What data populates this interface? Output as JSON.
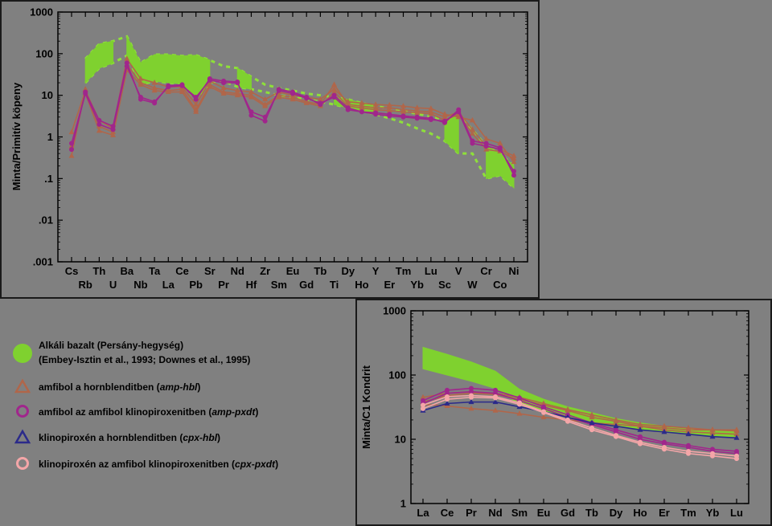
{
  "colors": {
    "background": "#808080",
    "basalt_band": "#7fd12f",
    "basalt_dash": "#8ee03a",
    "amp_hbl": "#b0664a",
    "amp_pxdt": "#a0268c",
    "cpx_hbl": "#2b2a8a",
    "cpx_pxdt": "#f4a6a8"
  },
  "legend": {
    "basalt_line1": "Alkáli bazalt (Persány-hegység)",
    "basalt_line2": "(Embey-Isztin et al., 1993; Downes et al., 1995)",
    "amp_hbl_text": "amfibol a hornblenditben",
    "amp_hbl_code": "amp-hbl",
    "amp_pxdt_text": "amfibol az amfibol klinopiroxenitben",
    "amp_pxdt_code": "amp-pxdt",
    "cpx_hbl_text": "klinopiroxén a hornblenditben",
    "cpx_hbl_code": "cpx-hbl",
    "cpx_pxdt_text": "klinopiroxén az amfibol klinopiroxenitben",
    "cpx_pxdt_code": "cpx-pxdt"
  },
  "chart_data": [
    {
      "type": "line",
      "ylabel": "Minta/Primitív köpeny",
      "yscale": "log",
      "ylim": [
        0.001,
        1000
      ],
      "yticks": [
        "1000",
        "100",
        "10",
        "1",
        ".1",
        ".01",
        ".001"
      ],
      "grid": false,
      "categories": [
        "Cs",
        "Rb",
        "Th",
        "U",
        "Ba",
        "Nb",
        "Ta",
        "La",
        "Ce",
        "Pb",
        "Sr",
        "Pr",
        "Nd",
        "Hf",
        "Zr",
        "Sm",
        "Eu",
        "Gd",
        "Tb",
        "Ti",
        "Dy",
        "Ho",
        "Y",
        "Er",
        "Tm",
        "Yb",
        "Lu",
        "Sc",
        "V",
        "W",
        "Cr",
        "Co",
        "Ni"
      ],
      "basalt_band": {
        "x": [
          "Cs",
          "Rb",
          "Th",
          "U",
          "Ba",
          "Nb",
          "Ta",
          "La",
          "Ce",
          "Pb",
          "Sr",
          "Pr",
          "Nd",
          "Hf",
          "Zr",
          "Sm",
          "Eu",
          "Gd",
          "Tb",
          "Ti",
          "Dy",
          "Ho",
          "Y",
          "Er",
          "Tm",
          "Yb",
          "Lu",
          "Sc",
          "V",
          "W",
          "Cr",
          "Co",
          "Ni"
        ],
        "upper": [
          null,
          75,
          170,
          200,
          260,
          60,
          95,
          95,
          88,
          92,
          70,
          50,
          45,
          28,
          18,
          15,
          13,
          11,
          10,
          9,
          8,
          6.5,
          5.5,
          4.8,
          4.2,
          3.6,
          3.1,
          2.6,
          3.5,
          1.5,
          0.6,
          0.4,
          0.2
        ],
        "lower": [
          null,
          20,
          45,
          60,
          90,
          18,
          22,
          20,
          19,
          8,
          20,
          22,
          16,
          14,
          12,
          10,
          9,
          8,
          7,
          6,
          5,
          4.2,
          3.5,
          2.8,
          2.2,
          1.6,
          1.2,
          0.8,
          0.4,
          0.4,
          0.1,
          0.12,
          0.06
        ],
        "solid_segments": [
          [
            "Rb",
            "U"
          ],
          [
            "Ba",
            "Sr"
          ],
          [
            "Nd",
            "Hf"
          ],
          [
            "Ti",
            "Y"
          ],
          [
            "Sc",
            "V"
          ],
          [
            "Cr",
            "Ni"
          ]
        ]
      },
      "series": [
        {
          "group": "amp-hbl",
          "values": [
            0.35,
            14,
            1.8,
            1.3,
            55,
            20,
            15,
            13,
            14,
            4.5,
            18,
            12,
            11,
            10,
            6,
            10,
            9,
            7,
            6,
            18,
            6,
            5.5,
            5,
            5,
            4.5,
            4.2,
            4,
            3,
            4,
            1.5,
            0.6,
            0.5,
            0.35
          ]
        },
        {
          "group": "amp-hbl",
          "values": [
            1.3,
            13,
            2.5,
            1.6,
            75,
            25,
            20,
            16,
            16,
            6,
            22,
            15,
            13,
            12,
            8,
            12,
            10,
            9,
            8,
            14,
            7,
            6.5,
            6,
            5.8,
            5.5,
            5,
            4.8,
            3.5,
            3,
            2.5,
            0.9,
            0.7,
            0.25
          ]
        },
        {
          "group": "amp-hbl",
          "values": [
            0.6,
            11,
            1.4,
            1.1,
            40,
            18,
            13,
            12,
            12,
            4,
            16,
            11,
            10,
            9,
            5.5,
            9,
            8,
            6.5,
            5.5,
            12,
            5.5,
            5,
            4.5,
            4.3,
            4,
            3.8,
            3.6,
            2.5,
            3.5,
            1.2,
            0.5,
            0.45,
            0.3
          ]
        },
        {
          "group": "amp-pxdt",
          "values": [
            0.5,
            12,
            2.5,
            1.8,
            60,
            8,
            6.5,
            17,
            18,
            8,
            25,
            22,
            21,
            3.3,
            2.4,
            14,
            12,
            9,
            6,
            10,
            5,
            4,
            3.8,
            3.5,
            3.2,
            3,
            2.8,
            2.2,
            4.5,
            0.8,
            0.7,
            0.55,
            0.12
          ]
        },
        {
          "group": "amp-pxdt",
          "values": [
            0.7,
            11,
            2,
            1.5,
            50,
            9,
            7,
            16,
            17,
            9,
            23,
            20,
            20,
            4,
            3,
            13,
            11,
            8.5,
            6.5,
            9,
            4.5,
            4,
            3.5,
            3.2,
            3,
            2.8,
            2.6,
            2.4,
            4,
            0.7,
            0.6,
            0.5,
            0.15
          ]
        }
      ]
    },
    {
      "type": "line",
      "ylabel": "Minta/C1 Kondrit",
      "yscale": "log",
      "ylim": [
        1,
        1000
      ],
      "yticks": [
        "1000",
        "100",
        "10",
        "1"
      ],
      "grid": false,
      "categories": [
        "La",
        "Ce",
        "Pr",
        "Nd",
        "Sm",
        "Eu",
        "Gd",
        "Tb",
        "Dy",
        "Ho",
        "Er",
        "Tm",
        "Yb",
        "Lu"
      ],
      "basalt_band": {
        "upper": [
          270,
          210,
          160,
          115,
          60,
          42,
          32,
          26,
          21,
          18,
          16,
          15,
          14,
          13
        ],
        "lower": [
          125,
          100,
          80,
          62,
          35,
          28,
          22,
          19,
          16,
          14,
          13,
          12,
          11,
          11
        ]
      },
      "series": [
        {
          "group": "amp-hbl",
          "values": [
            35,
            33,
            30,
            28,
            25,
            22,
            20,
            18,
            17,
            16,
            15,
            14,
            14,
            14
          ]
        },
        {
          "group": "amp-hbl",
          "values": [
            45,
            52,
            55,
            52,
            45,
            36,
            29,
            24,
            20,
            17,
            16,
            15,
            14,
            13.5
          ]
        },
        {
          "group": "amp-hbl",
          "values": [
            38,
            48,
            52,
            50,
            42,
            34,
            28,
            22,
            19,
            16,
            14,
            13,
            12.5,
            12
          ]
        },
        {
          "group": "amp-pxdt",
          "values": [
            40,
            58,
            62,
            58,
            44,
            32,
            24,
            18,
            14,
            11,
            9,
            8,
            7,
            6.5
          ]
        },
        {
          "group": "amp-pxdt",
          "values": [
            36,
            52,
            55,
            52,
            40,
            30,
            22,
            17,
            13,
            10,
            8.5,
            7.5,
            6.5,
            6
          ]
        },
        {
          "group": "cpx-hbl",
          "values": [
            28,
            36,
            38,
            38,
            32,
            27,
            22,
            18,
            16,
            14,
            13,
            12,
            11,
            10.5
          ]
        },
        {
          "group": "cpx-pxdt",
          "values": [
            30,
            42,
            45,
            44,
            35,
            26,
            19,
            14,
            11,
            8.5,
            7,
            6,
            5.5,
            5
          ]
        },
        {
          "group": "cpx-pxdt",
          "values": [
            34,
            46,
            48,
            46,
            37,
            27,
            20,
            15,
            11.5,
            9,
            7.5,
            6.5,
            6,
            5.5
          ]
        }
      ]
    }
  ]
}
